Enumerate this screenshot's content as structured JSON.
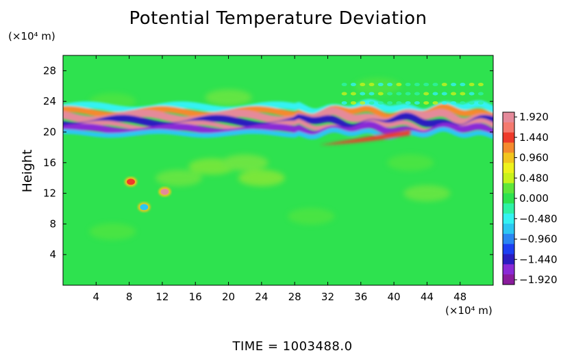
{
  "chart_data": {
    "type": "heatmap",
    "title": "Potential Temperature Deviation",
    "ylabel": "Height",
    "x_unit_label": "(×10⁴ m)",
    "y_unit_label": "(×10⁴ m)",
    "xlim": [
      0,
      52
    ],
    "ylim": [
      0,
      30
    ],
    "x_ticks": [
      4,
      8,
      12,
      16,
      20,
      24,
      28,
      32,
      36,
      40,
      44,
      48
    ],
    "y_ticks": [
      4,
      8,
      12,
      16,
      20,
      24,
      28
    ],
    "grid": false,
    "colorbar": {
      "placement": "right",
      "labels": [
        "1.920",
        "1.440",
        "0.960",
        "0.480",
        "0.000",
        "-0.480",
        "-0.960",
        "-1.440",
        "-1.920"
      ],
      "colors": [
        "#e58a9a",
        "#f47a6f",
        "#ee3a2a",
        "#f58a2e",
        "#f2c51e",
        "#eef21c",
        "#c8f21c",
        "#5fe63a",
        "#2ee24f",
        "#2ef2a5",
        "#34f2f2",
        "#2cc7f2",
        "#2a86f2",
        "#1c3ff2",
        "#2a1cc0",
        "#8a2ad6",
        "#8a1c9c"
      ]
    },
    "features": [
      {
        "name": "wave_band",
        "x_range": [
          0,
          52
        ],
        "y_range": [
          19.5,
          23.5
        ],
        "value_range": [
          -1.92,
          1.92
        ]
      },
      {
        "name": "warm_blob",
        "x": 8.2,
        "y": 13.5,
        "value": 1.4
      },
      {
        "name": "warm_blob",
        "x": 12.3,
        "y": 12.2,
        "value": 1.9
      },
      {
        "name": "cool_blob",
        "x": 9.8,
        "y": 10.2,
        "value": -0.6
      }
    ],
    "background_value": 0.0
  },
  "footer": {
    "time_label": "TIME  =  1003488.0"
  }
}
